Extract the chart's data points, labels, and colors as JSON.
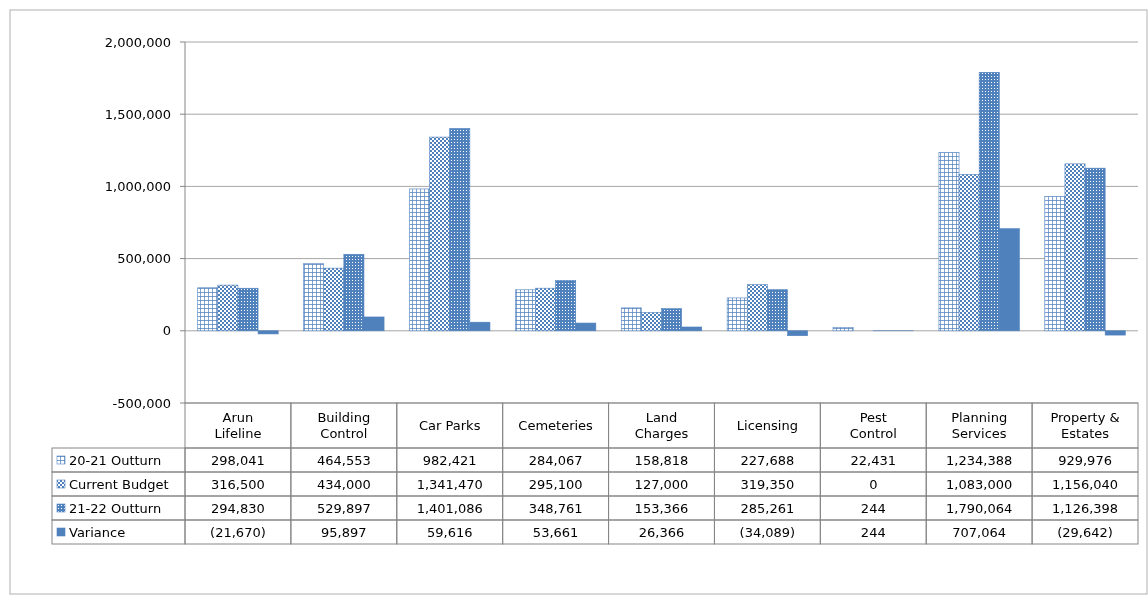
{
  "chart_data": {
    "type": "bar",
    "categories": [
      "Arun Lifeline",
      "Building Control",
      "Car Parks",
      "Cemeteries",
      "Land Charges",
      "Licensing",
      "Pest Control",
      "Planning Services",
      "Property & Estates"
    ],
    "series": [
      {
        "name": "20-21 Outturn",
        "color": "#4f81bd",
        "values": [
          298041,
          464553,
          982421,
          284067,
          158818,
          227688,
          22431,
          1234388,
          929976
        ],
        "value_labels": [
          "298,041",
          "464,553",
          "982,421",
          "284,067",
          "158,818",
          "227,688",
          "22,431",
          "1,234,388",
          "929,976"
        ]
      },
      {
        "name": "Current Budget",
        "color": "#4f81bd",
        "values": [
          316500,
          434000,
          1341470,
          295100,
          127000,
          319350,
          0,
          1083000,
          1156040
        ],
        "value_labels": [
          "316,500",
          "434,000",
          "1,341,470",
          "295,100",
          "127,000",
          "319,350",
          "0",
          "1,083,000",
          "1,156,040"
        ]
      },
      {
        "name": "21-22 Outturn",
        "color": "#4f81bd",
        "values": [
          294830,
          529897,
          1401086,
          348761,
          153366,
          285261,
          244,
          1790064,
          1126398
        ],
        "value_labels": [
          "294,830",
          "529,897",
          "1,401,086",
          "348,761",
          "153,366",
          "285,261",
          "244",
          "1,790,064",
          "1,126,398"
        ]
      },
      {
        "name": "Variance",
        "color": "#4f81bd",
        "values": [
          -21670,
          95897,
          59616,
          53661,
          26366,
          -34089,
          244,
          707064,
          -29642
        ],
        "value_labels": [
          "(21,670)",
          "95,897",
          "59,616",
          "53,661",
          "26,366",
          "(34,089)",
          "244",
          "707,064",
          "(29,642)"
        ]
      }
    ],
    "ylim": [
      -500000,
      2000000
    ],
    "yticks": [
      {
        "value": -500000,
        "label": "-500,000"
      },
      0,
      {
        "value": 500000,
        "label": "500,000"
      },
      {
        "value": 1000000,
        "label": "1,000,000"
      },
      {
        "value": 1500000,
        "label": "1,500,000"
      },
      {
        "value": 2000000,
        "label": "2,000,000"
      }
    ],
    "grid": "y",
    "legend": "bottom"
  }
}
